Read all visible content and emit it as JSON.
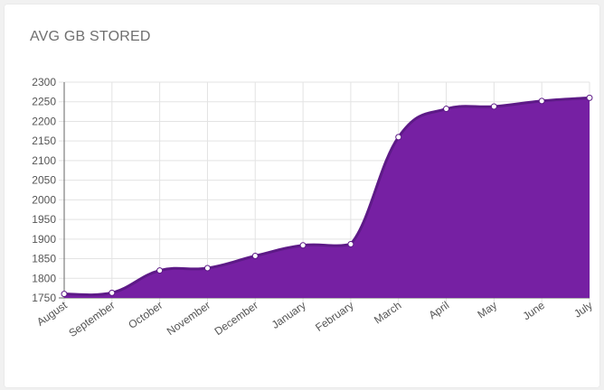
{
  "card": {
    "title": "AVG GB STORED"
  },
  "chart_data": {
    "type": "area",
    "title": "AVG GB STORED",
    "categories": [
      "August",
      "September",
      "October",
      "November",
      "December",
      "January",
      "February",
      "March",
      "April",
      "May",
      "June",
      "July"
    ],
    "series": [
      {
        "values": [
          1760,
          1763,
          1820,
          1826,
          1857,
          1884,
          1887,
          2160,
          2232,
          2238,
          2252,
          2260
        ]
      }
    ],
    "ylim": [
      1750,
      2300
    ],
    "yticks": [
      1750,
      1800,
      1850,
      1900,
      1950,
      2000,
      2050,
      2100,
      2150,
      2200,
      2250,
      2300
    ],
    "grid": true,
    "xlabel": "",
    "ylabel": "",
    "colors": {
      "fill": "#7620a3",
      "line": "#5d1a87",
      "point_fill": "#ffffff",
      "grid": "#e3e3e3",
      "axis": "#666666"
    }
  }
}
